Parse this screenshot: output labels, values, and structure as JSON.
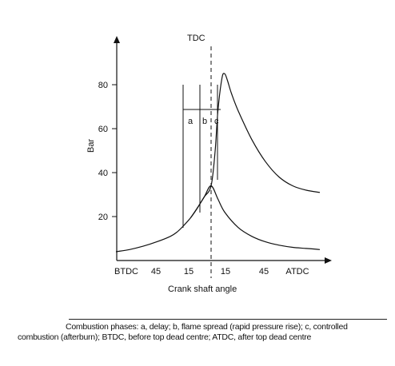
{
  "chart_data": {
    "type": "line",
    "xlabel": "Crank shaft angle",
    "ylabel": "Bar",
    "x_tick_labels": [
      "BTDC",
      "45",
      "15",
      "15",
      "45",
      "ATDC"
    ],
    "y_ticks": [
      20,
      40,
      60,
      80
    ],
    "ylim": [
      0,
      90
    ],
    "tdc_label": "TDC",
    "phase_labels": [
      "a",
      "b",
      "c"
    ],
    "series": [
      {
        "x": [
          -70,
          -60,
          -50,
          -40,
          -30,
          -25,
          -20,
          -15,
          -10,
          -5,
          0,
          5,
          10,
          20,
          30,
          40,
          50,
          60,
          70,
          80
        ],
        "values": [
          4,
          5,
          6.5,
          8.5,
          11,
          13,
          16,
          19.5,
          24,
          29,
          34,
          28,
          22,
          15,
          11,
          8.5,
          7,
          6,
          5.5,
          5
        ]
      },
      {
        "x": [
          -15,
          -10,
          -5,
          0,
          3,
          5,
          8,
          10,
          12,
          15,
          20,
          30,
          40,
          50,
          60,
          70,
          80
        ],
        "values": [
          19.5,
          24,
          29,
          34,
          50,
          68,
          83,
          85,
          82,
          76,
          68,
          55,
          45,
          38,
          34,
          32,
          31
        ]
      }
    ]
  },
  "caption": "Combustion phases: a, delay; b, flame spread (rapid pressure rise); c, controlled combustion (afterburn); BTDC, before top dead centre; ATDC, after top dead centre"
}
